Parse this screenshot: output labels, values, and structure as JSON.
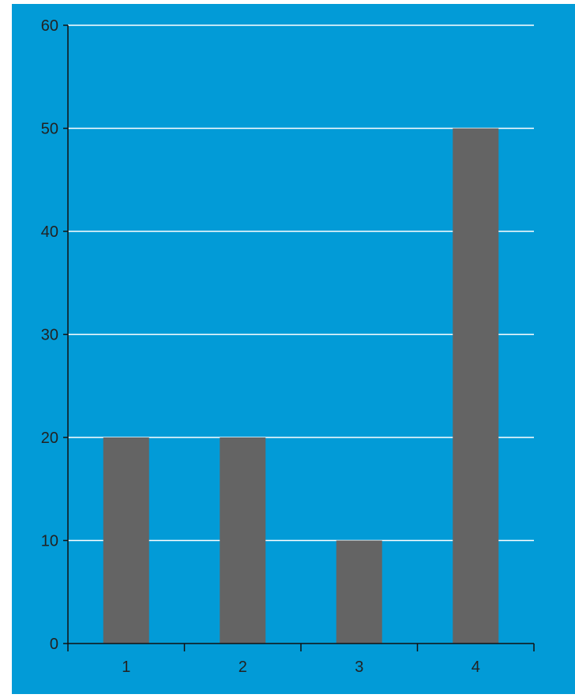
{
  "chart_data": {
    "type": "bar",
    "categories": [
      "1",
      "2",
      "3",
      "4"
    ],
    "values": [
      20,
      20,
      10,
      50
    ],
    "title": "",
    "xlabel": "",
    "ylabel": "",
    "ylim": [
      0,
      60
    ],
    "yticks": [
      0,
      10,
      20,
      30,
      40,
      50,
      60
    ],
    "ytick_labels": [
      "0",
      "10",
      "20",
      "30",
      "40",
      "50",
      "60"
    ],
    "grid": true,
    "legend": "none",
    "colors": {
      "plot_background": "#029bd7",
      "bar": "#646464",
      "grid": "#ffffff",
      "axis": "#111111",
      "text": "#222222"
    }
  }
}
